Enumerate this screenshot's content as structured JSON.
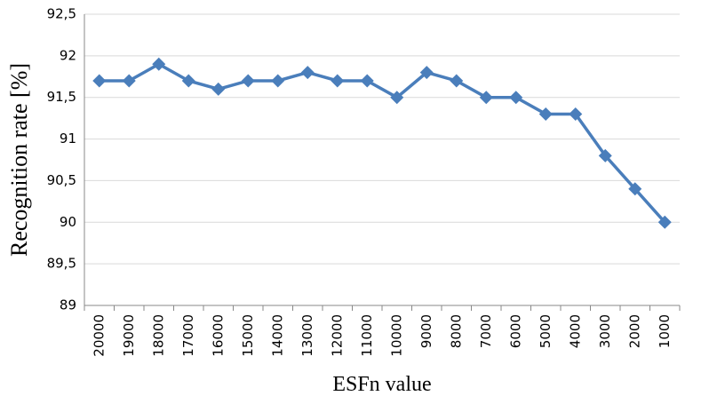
{
  "chart_data": {
    "type": "line",
    "x_label": "ESFn value",
    "y_label": "Recognition rate [%]",
    "categories": [
      "20000",
      "19000",
      "18000",
      "17000",
      "16000",
      "15000",
      "14000",
      "13000",
      "12000",
      "11000",
      "10000",
      "9000",
      "8000",
      "7000",
      "6000",
      "5000",
      "4000",
      "3000",
      "2000",
      "1000"
    ],
    "series": [
      {
        "color": "#4a7ebb",
        "values": [
          91.7,
          91.7,
          91.9,
          91.7,
          91.6,
          91.7,
          91.7,
          91.8,
          91.7,
          91.7,
          91.5,
          91.8,
          91.7,
          91.5,
          91.5,
          91.3,
          91.3,
          90.8,
          90.4,
          90.0
        ]
      }
    ],
    "ylim": [
      89,
      92.5
    ],
    "yticks": [
      89,
      {
        "value": 89.5,
        "label": "89,5"
      },
      90,
      {
        "value": 90.5,
        "label": "90,5"
      },
      91,
      {
        "value": 91.5,
        "label": "91,5"
      },
      92,
      {
        "value": 92.5,
        "label": "92,5"
      }
    ],
    "grid": true
  }
}
